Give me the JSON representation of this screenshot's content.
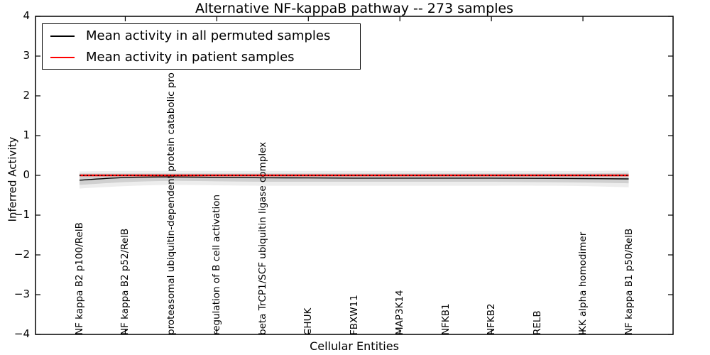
{
  "title": "Alternative NF-kappaB pathway -- 273 samples",
  "xlabel": "Cellular Entities",
  "ylabel": "Inferred Activity",
  "yticklabels": [
    "4",
    "3",
    "2",
    "1",
    "0",
    "−1",
    "−2",
    "−3",
    "−4"
  ],
  "legend": {
    "entries": [
      {
        "label": "Mean activity in all permuted samples",
        "color": "#000000"
      },
      {
        "label": "Mean activity in patient samples",
        "color": "#ff0000"
      }
    ]
  },
  "chart_data": {
    "type": "line",
    "title": "Alternative NF-kappaB pathway -- 273 samples",
    "xlabel": "Cellular Entities",
    "ylabel": "Inferred Activity",
    "ylim": [
      -4,
      4
    ],
    "yticks": [
      4,
      3,
      2,
      1,
      0,
      -1,
      -2,
      -3,
      -4
    ],
    "grid": false,
    "legend_position": "upper left",
    "categories": [
      "NF kappa B2 p100/RelB",
      "NF kappa B2 p52/RelB",
      "proteasomal ubiquitin-dependent protein catabolic pro",
      "regulation of B cell activation",
      "beta TrCP1/SCF ubiquitin ligase complex",
      "CHUK",
      "FBXW11",
      "MAP3K14",
      "NFKB1",
      "NFKB2",
      "RELB",
      "IKK alpha homodimer",
      "NF kappa B1 p50/RelB"
    ],
    "series": [
      {
        "name": "Mean activity in all permuted samples",
        "color": "#000000",
        "style": "solid",
        "values": [
          -0.12,
          -0.055,
          -0.04,
          -0.05,
          -0.06,
          -0.065,
          -0.07,
          -0.07,
          -0.07,
          -0.07,
          -0.075,
          -0.08,
          -0.09
        ]
      },
      {
        "name": "Mean activity in patient samples",
        "color": "#ff0000",
        "style": "solid",
        "values": [
          0.0,
          0.0,
          0.0,
          0.0,
          0.0,
          0.0,
          0.0,
          0.0,
          0.0,
          0.0,
          0.0,
          0.0,
          0.0
        ]
      }
    ],
    "zero_line": {
      "y": 0,
      "style": "dotted",
      "color": "#000000"
    },
    "bands": [
      {
        "name": "permuted activity spread (outer)",
        "alpha": 0.07,
        "upper": [
          0.1,
          0.11,
          0.11,
          0.11,
          0.11,
          0.11,
          0.11,
          0.11,
          0.11,
          0.11,
          0.11,
          0.11,
          0.12
        ],
        "lower": [
          -0.33,
          -0.27,
          -0.24,
          -0.25,
          -0.26,
          -0.26,
          -0.26,
          -0.26,
          -0.26,
          -0.26,
          -0.26,
          -0.27,
          -0.3
        ]
      },
      {
        "name": "permuted activity spread (inner)",
        "alpha": 0.12,
        "upper": [
          0.05,
          0.05,
          0.05,
          0.05,
          0.05,
          0.05,
          0.05,
          0.05,
          0.05,
          0.05,
          0.05,
          0.05,
          0.06
        ],
        "lower": [
          -0.24,
          -0.17,
          -0.14,
          -0.15,
          -0.16,
          -0.16,
          -0.16,
          -0.16,
          -0.16,
          -0.16,
          -0.17,
          -0.18,
          -0.2
        ]
      }
    ]
  }
}
